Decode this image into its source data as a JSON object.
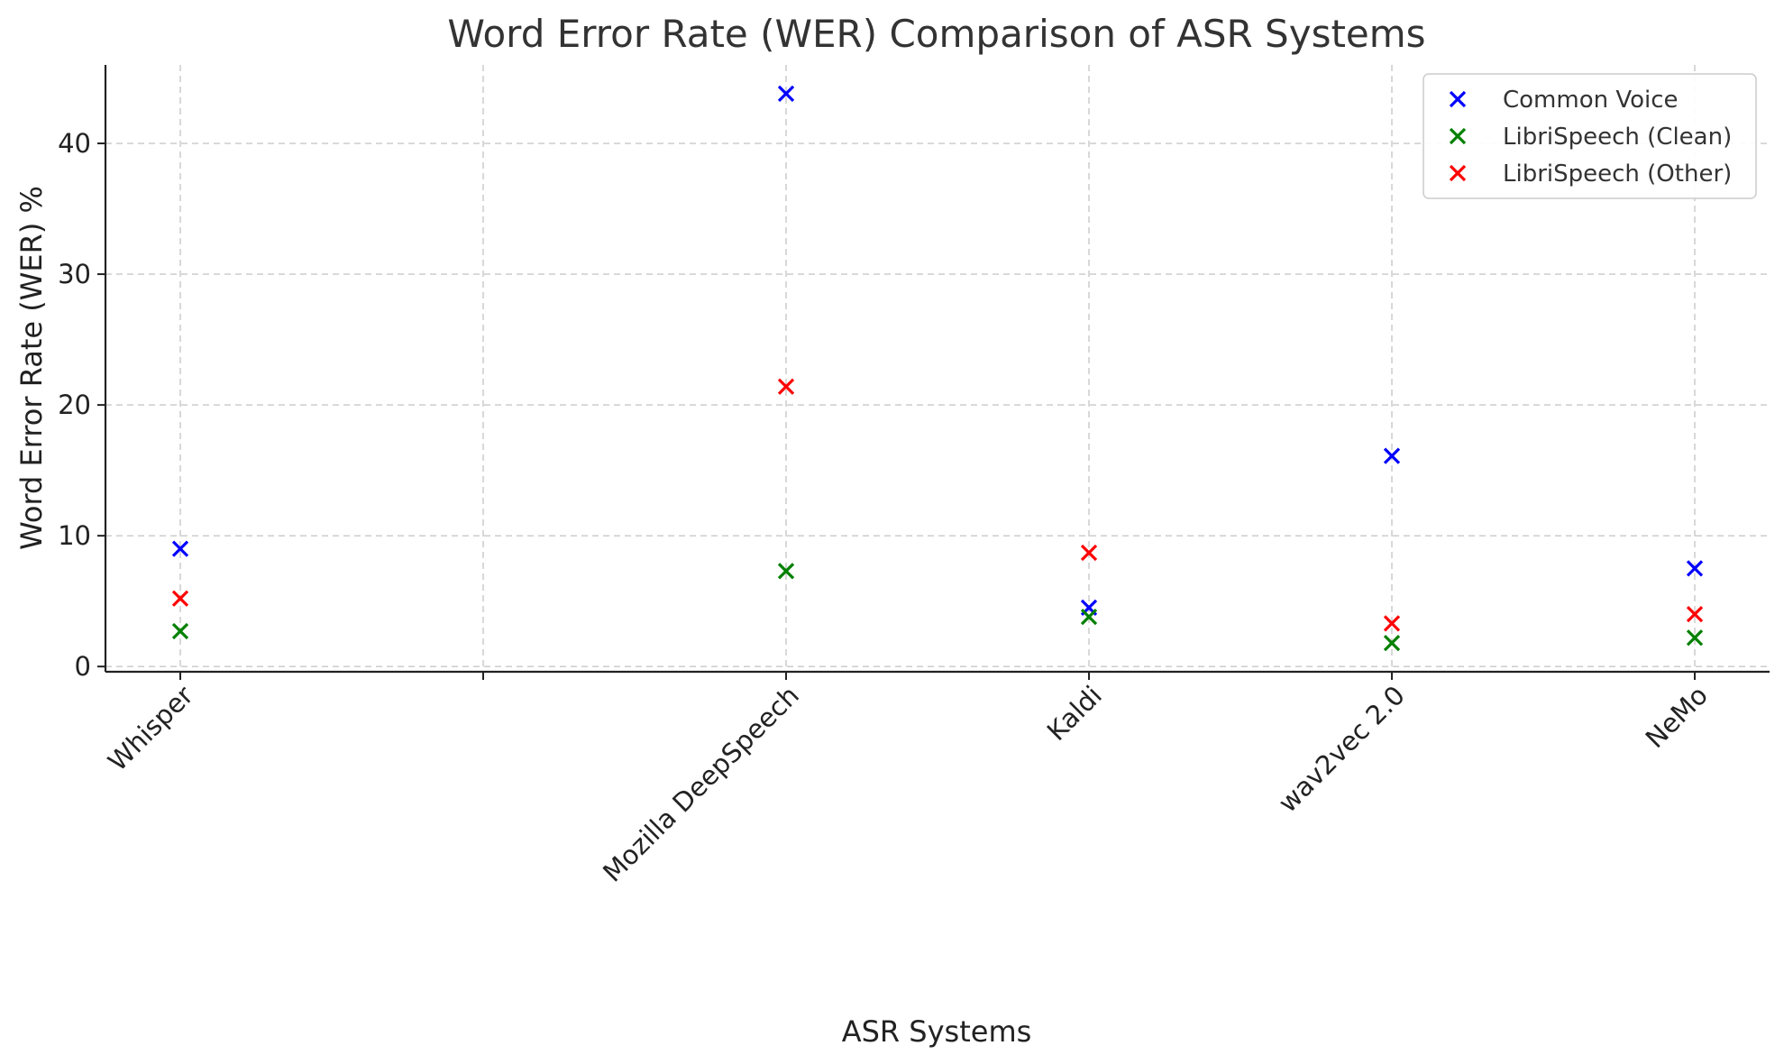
{
  "chart_data": {
    "type": "scatter",
    "title": "Word Error Rate (WER) Comparison of ASR Systems",
    "xlabel": "ASR Systems",
    "ylabel": "Word Error Rate (WER) %",
    "categories": [
      "Whisper",
      "",
      "Mozilla DeepSpeech",
      "Kaldi",
      "wav2vec 2.0",
      "NeMo"
    ],
    "ylim": [
      -0.4,
      46
    ],
    "yticks": [
      0,
      10,
      20,
      30,
      40
    ],
    "grid": true,
    "legend_position": "top-right",
    "marker": "x",
    "series": [
      {
        "name": "Common Voice",
        "color": "#0000ff",
        "points": [
          {
            "x": "Whisper",
            "y": 9.0
          },
          {
            "x": "Mozilla DeepSpeech",
            "y": 43.8
          },
          {
            "x": "Kaldi",
            "y": 4.5
          },
          {
            "x": "wav2vec 2.0",
            "y": 16.1
          },
          {
            "x": "NeMo",
            "y": 7.5
          }
        ]
      },
      {
        "name": "LibriSpeech (Clean)",
        "color": "#008000",
        "points": [
          {
            "x": "Whisper",
            "y": 2.7
          },
          {
            "x": "Mozilla DeepSpeech",
            "y": 7.3
          },
          {
            "x": "Kaldi",
            "y": 3.8
          },
          {
            "x": "wav2vec 2.0",
            "y": 1.8
          },
          {
            "x": "NeMo",
            "y": 2.2
          }
        ]
      },
      {
        "name": "LibriSpeech (Other)",
        "color": "#ff0000",
        "points": [
          {
            "x": "Whisper",
            "y": 5.2
          },
          {
            "x": "Mozilla DeepSpeech",
            "y": 21.4
          },
          {
            "x": "Kaldi",
            "y": 8.7
          },
          {
            "x": "wav2vec 2.0",
            "y": 3.3
          },
          {
            "x": "NeMo",
            "y": 4.0
          }
        ]
      }
    ]
  }
}
